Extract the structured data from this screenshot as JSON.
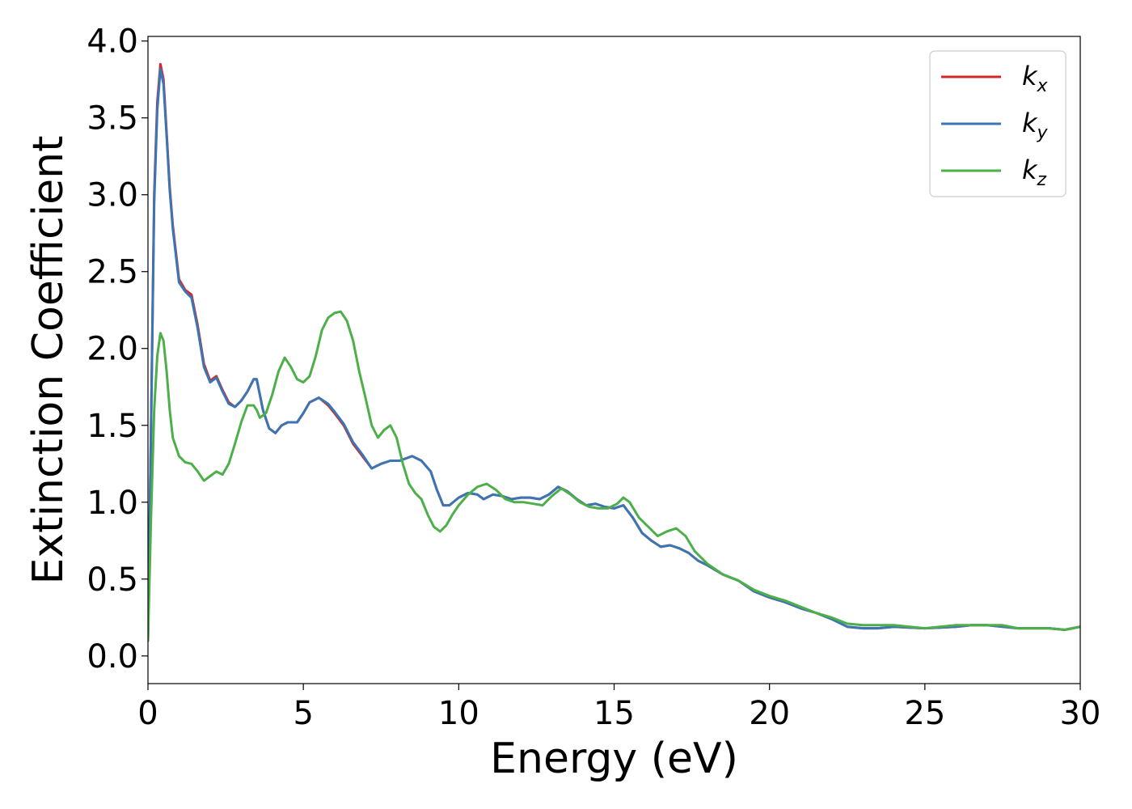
{
  "chart_data": {
    "type": "line",
    "xlabel": "Energy (eV)",
    "ylabel": "Extinction Coefficient",
    "xlim": [
      0,
      30
    ],
    "ylim": [
      -0.18,
      4.03
    ],
    "xticks": [
      0,
      5,
      10,
      15,
      20,
      25,
      30
    ],
    "xtick_labels": [
      "0",
      "5",
      "10",
      "15",
      "20",
      "25",
      "30"
    ],
    "yticks": [
      0.0,
      0.5,
      1.0,
      1.5,
      2.0,
      2.5,
      3.0,
      3.5,
      4.0
    ],
    "ytick_labels": [
      "0.0",
      "0.5",
      "1.0",
      "1.5",
      "2.0",
      "2.5",
      "3.0",
      "3.5",
      "4.0"
    ],
    "grid": false,
    "legend_position": "top-right",
    "series": [
      {
        "name": "k",
        "subscript": "x",
        "color": "#d62728",
        "points": [
          [
            0,
            0.1
          ],
          [
            0.1,
            1.5
          ],
          [
            0.2,
            3.0
          ],
          [
            0.3,
            3.6
          ],
          [
            0.4,
            3.85
          ],
          [
            0.5,
            3.75
          ],
          [
            0.6,
            3.4
          ],
          [
            0.7,
            3.05
          ],
          [
            0.8,
            2.8
          ],
          [
            1.0,
            2.45
          ],
          [
            1.2,
            2.38
          ],
          [
            1.4,
            2.35
          ],
          [
            1.6,
            2.15
          ],
          [
            1.8,
            1.9
          ],
          [
            2.0,
            1.79
          ],
          [
            2.2,
            1.82
          ],
          [
            2.4,
            1.73
          ],
          [
            2.6,
            1.65
          ],
          [
            2.8,
            1.62
          ],
          [
            3.0,
            1.66
          ],
          [
            3.2,
            1.72
          ],
          [
            3.4,
            1.8
          ],
          [
            3.5,
            1.8
          ],
          [
            3.7,
            1.6
          ],
          [
            3.9,
            1.48
          ],
          [
            4.1,
            1.45
          ],
          [
            4.3,
            1.5
          ],
          [
            4.5,
            1.52
          ],
          [
            4.8,
            1.52
          ],
          [
            5.0,
            1.58
          ],
          [
            5.2,
            1.65
          ],
          [
            5.5,
            1.68
          ],
          [
            5.8,
            1.63
          ],
          [
            6.0,
            1.58
          ],
          [
            6.3,
            1.5
          ],
          [
            6.6,
            1.38
          ],
          [
            6.9,
            1.3
          ],
          [
            7.2,
            1.22
          ],
          [
            7.5,
            1.25
          ],
          [
            7.8,
            1.27
          ],
          [
            8.1,
            1.27
          ],
          [
            8.5,
            1.3
          ],
          [
            8.8,
            1.27
          ],
          [
            9.1,
            1.2
          ],
          [
            9.3,
            1.08
          ],
          [
            9.5,
            0.98
          ],
          [
            9.7,
            0.98
          ],
          [
            10.0,
            1.03
          ],
          [
            10.3,
            1.06
          ],
          [
            10.6,
            1.05
          ],
          [
            10.8,
            1.02
          ],
          [
            11.1,
            1.05
          ],
          [
            11.4,
            1.04
          ],
          [
            11.7,
            1.02
          ],
          [
            12.0,
            1.03
          ],
          [
            12.3,
            1.03
          ],
          [
            12.6,
            1.02
          ],
          [
            12.9,
            1.05
          ],
          [
            13.2,
            1.1
          ],
          [
            13.5,
            1.07
          ],
          [
            13.8,
            1.02
          ],
          [
            14.1,
            0.98
          ],
          [
            14.4,
            0.99
          ],
          [
            14.7,
            0.97
          ],
          [
            15.0,
            0.96
          ],
          [
            15.3,
            0.98
          ],
          [
            15.6,
            0.9
          ],
          [
            15.9,
            0.8
          ],
          [
            16.2,
            0.75
          ],
          [
            16.5,
            0.71
          ],
          [
            16.8,
            0.72
          ],
          [
            17.1,
            0.7
          ],
          [
            17.4,
            0.67
          ],
          [
            17.7,
            0.62
          ],
          [
            18.0,
            0.59
          ],
          [
            18.5,
            0.53
          ],
          [
            19.0,
            0.49
          ],
          [
            19.5,
            0.42
          ],
          [
            20.0,
            0.38
          ],
          [
            20.5,
            0.35
          ],
          [
            21.0,
            0.31
          ],
          [
            21.5,
            0.28
          ],
          [
            22.0,
            0.24
          ],
          [
            22.5,
            0.19
          ],
          [
            23.0,
            0.18
          ],
          [
            23.5,
            0.18
          ],
          [
            24.0,
            0.19
          ],
          [
            25.0,
            0.18
          ],
          [
            26.0,
            0.19
          ],
          [
            26.5,
            0.2
          ],
          [
            27.0,
            0.2
          ],
          [
            28.0,
            0.18
          ],
          [
            29.0,
            0.18
          ],
          [
            29.5,
            0.17
          ],
          [
            30.0,
            0.19
          ]
        ]
      },
      {
        "name": "k",
        "subscript": "y",
        "color": "#3a76b4",
        "points": [
          [
            0,
            0.1
          ],
          [
            0.1,
            1.48
          ],
          [
            0.2,
            2.95
          ],
          [
            0.3,
            3.55
          ],
          [
            0.4,
            3.82
          ],
          [
            0.5,
            3.72
          ],
          [
            0.6,
            3.38
          ],
          [
            0.7,
            3.03
          ],
          [
            0.8,
            2.78
          ],
          [
            1.0,
            2.43
          ],
          [
            1.2,
            2.37
          ],
          [
            1.4,
            2.33
          ],
          [
            1.6,
            2.13
          ],
          [
            1.8,
            1.88
          ],
          [
            2.0,
            1.78
          ],
          [
            2.2,
            1.81
          ],
          [
            2.4,
            1.72
          ],
          [
            2.6,
            1.64
          ],
          [
            2.8,
            1.62
          ],
          [
            3.0,
            1.66
          ],
          [
            3.2,
            1.72
          ],
          [
            3.4,
            1.8
          ],
          [
            3.5,
            1.8
          ],
          [
            3.7,
            1.6
          ],
          [
            3.9,
            1.48
          ],
          [
            4.1,
            1.45
          ],
          [
            4.3,
            1.5
          ],
          [
            4.5,
            1.52
          ],
          [
            4.8,
            1.52
          ],
          [
            5.0,
            1.58
          ],
          [
            5.2,
            1.65
          ],
          [
            5.5,
            1.68
          ],
          [
            5.8,
            1.64
          ],
          [
            6.0,
            1.59
          ],
          [
            6.3,
            1.51
          ],
          [
            6.6,
            1.39
          ],
          [
            6.9,
            1.31
          ],
          [
            7.2,
            1.22
          ],
          [
            7.5,
            1.25
          ],
          [
            7.8,
            1.27
          ],
          [
            8.1,
            1.27
          ],
          [
            8.5,
            1.3
          ],
          [
            8.8,
            1.27
          ],
          [
            9.1,
            1.2
          ],
          [
            9.3,
            1.08
          ],
          [
            9.5,
            0.98
          ],
          [
            9.7,
            0.98
          ],
          [
            10.0,
            1.03
          ],
          [
            10.3,
            1.06
          ],
          [
            10.6,
            1.05
          ],
          [
            10.8,
            1.02
          ],
          [
            11.1,
            1.05
          ],
          [
            11.4,
            1.04
          ],
          [
            11.7,
            1.02
          ],
          [
            12.0,
            1.03
          ],
          [
            12.3,
            1.03
          ],
          [
            12.6,
            1.02
          ],
          [
            12.9,
            1.05
          ],
          [
            13.2,
            1.1
          ],
          [
            13.5,
            1.07
          ],
          [
            13.8,
            1.02
          ],
          [
            14.1,
            0.98
          ],
          [
            14.4,
            0.99
          ],
          [
            14.7,
            0.97
          ],
          [
            15.0,
            0.96
          ],
          [
            15.3,
            0.98
          ],
          [
            15.6,
            0.9
          ],
          [
            15.9,
            0.8
          ],
          [
            16.2,
            0.75
          ],
          [
            16.5,
            0.71
          ],
          [
            16.8,
            0.72
          ],
          [
            17.1,
            0.7
          ],
          [
            17.4,
            0.67
          ],
          [
            17.7,
            0.62
          ],
          [
            18.0,
            0.59
          ],
          [
            18.5,
            0.53
          ],
          [
            19.0,
            0.49
          ],
          [
            19.5,
            0.42
          ],
          [
            20.0,
            0.38
          ],
          [
            20.5,
            0.35
          ],
          [
            21.0,
            0.31
          ],
          [
            21.5,
            0.28
          ],
          [
            22.0,
            0.24
          ],
          [
            22.5,
            0.19
          ],
          [
            23.0,
            0.18
          ],
          [
            23.5,
            0.18
          ],
          [
            24.0,
            0.19
          ],
          [
            25.0,
            0.18
          ],
          [
            26.0,
            0.19
          ],
          [
            26.5,
            0.2
          ],
          [
            27.0,
            0.2
          ],
          [
            28.0,
            0.18
          ],
          [
            29.0,
            0.18
          ],
          [
            29.5,
            0.17
          ],
          [
            30.0,
            0.19
          ]
        ]
      },
      {
        "name": "k",
        "subscript": "z",
        "color": "#4daf4a",
        "points": [
          [
            0,
            0.1
          ],
          [
            0.1,
            0.9
          ],
          [
            0.2,
            1.6
          ],
          [
            0.3,
            1.95
          ],
          [
            0.4,
            2.1
          ],
          [
            0.5,
            2.05
          ],
          [
            0.6,
            1.85
          ],
          [
            0.7,
            1.6
          ],
          [
            0.8,
            1.42
          ],
          [
            1.0,
            1.3
          ],
          [
            1.2,
            1.26
          ],
          [
            1.4,
            1.25
          ],
          [
            1.6,
            1.2
          ],
          [
            1.8,
            1.14
          ],
          [
            2.0,
            1.17
          ],
          [
            2.2,
            1.2
          ],
          [
            2.4,
            1.18
          ],
          [
            2.6,
            1.25
          ],
          [
            2.8,
            1.38
          ],
          [
            3.0,
            1.52
          ],
          [
            3.2,
            1.63
          ],
          [
            3.4,
            1.63
          ],
          [
            3.5,
            1.6
          ],
          [
            3.6,
            1.55
          ],
          [
            3.8,
            1.58
          ],
          [
            4.0,
            1.7
          ],
          [
            4.2,
            1.85
          ],
          [
            4.4,
            1.94
          ],
          [
            4.6,
            1.88
          ],
          [
            4.8,
            1.8
          ],
          [
            5.0,
            1.78
          ],
          [
            5.2,
            1.82
          ],
          [
            5.4,
            1.95
          ],
          [
            5.6,
            2.12
          ],
          [
            5.8,
            2.2
          ],
          [
            6.0,
            2.23
          ],
          [
            6.2,
            2.24
          ],
          [
            6.4,
            2.18
          ],
          [
            6.6,
            2.05
          ],
          [
            6.8,
            1.85
          ],
          [
            7.0,
            1.68
          ],
          [
            7.2,
            1.5
          ],
          [
            7.4,
            1.42
          ],
          [
            7.6,
            1.47
          ],
          [
            7.8,
            1.5
          ],
          [
            8.0,
            1.42
          ],
          [
            8.2,
            1.25
          ],
          [
            8.4,
            1.12
          ],
          [
            8.6,
            1.06
          ],
          [
            8.8,
            1.02
          ],
          [
            9.0,
            0.92
          ],
          [
            9.2,
            0.84
          ],
          [
            9.4,
            0.81
          ],
          [
            9.6,
            0.85
          ],
          [
            9.8,
            0.92
          ],
          [
            10.0,
            0.98
          ],
          [
            10.3,
            1.05
          ],
          [
            10.6,
            1.1
          ],
          [
            10.9,
            1.12
          ],
          [
            11.2,
            1.08
          ],
          [
            11.5,
            1.02
          ],
          [
            11.8,
            1.0
          ],
          [
            12.1,
            1.0
          ],
          [
            12.4,
            0.99
          ],
          [
            12.7,
            0.98
          ],
          [
            13.0,
            1.04
          ],
          [
            13.3,
            1.09
          ],
          [
            13.6,
            1.05
          ],
          [
            13.9,
            1.0
          ],
          [
            14.2,
            0.97
          ],
          [
            14.5,
            0.96
          ],
          [
            14.8,
            0.96
          ],
          [
            15.1,
            0.99
          ],
          [
            15.3,
            1.03
          ],
          [
            15.5,
            1.0
          ],
          [
            15.8,
            0.9
          ],
          [
            16.1,
            0.84
          ],
          [
            16.4,
            0.78
          ],
          [
            16.7,
            0.81
          ],
          [
            17.0,
            0.83
          ],
          [
            17.3,
            0.78
          ],
          [
            17.6,
            0.68
          ],
          [
            18.0,
            0.6
          ],
          [
            18.5,
            0.53
          ],
          [
            19.0,
            0.49
          ],
          [
            19.5,
            0.43
          ],
          [
            20.0,
            0.39
          ],
          [
            20.5,
            0.36
          ],
          [
            21.0,
            0.32
          ],
          [
            21.5,
            0.28
          ],
          [
            22.0,
            0.25
          ],
          [
            22.5,
            0.21
          ],
          [
            23.0,
            0.2
          ],
          [
            23.5,
            0.2
          ],
          [
            24.0,
            0.2
          ],
          [
            25.0,
            0.18
          ],
          [
            26.0,
            0.2
          ],
          [
            27.0,
            0.2
          ],
          [
            27.5,
            0.2
          ],
          [
            28.0,
            0.18
          ],
          [
            29.0,
            0.18
          ],
          [
            29.5,
            0.17
          ],
          [
            30.0,
            0.19
          ]
        ]
      }
    ]
  }
}
